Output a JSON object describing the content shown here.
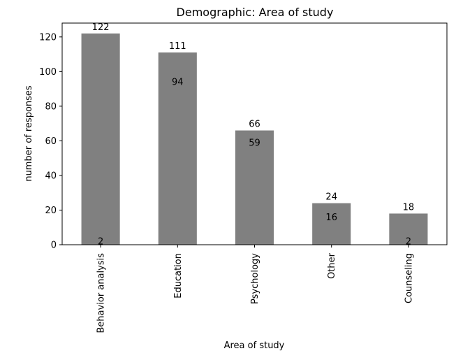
{
  "chart_data": {
    "type": "bar",
    "title": "Demographic: Area of study",
    "xlabel": "Area of study",
    "ylabel": "number of responses",
    "categories": [
      "Behavior analysis",
      "Education",
      "Psychology",
      "Other",
      "Counseling"
    ],
    "values": [
      122,
      111,
      66,
      24,
      18
    ],
    "inner_labels": [
      2,
      94,
      59,
      16,
      2
    ],
    "yticks": [
      0,
      20,
      40,
      60,
      80,
      100,
      120
    ],
    "ylim": [
      0,
      128
    ],
    "bar_color": "#808080",
    "grid": false,
    "legend": "none"
  }
}
